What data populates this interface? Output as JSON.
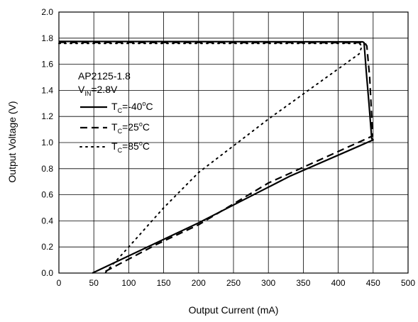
{
  "chart_data": {
    "type": "line",
    "xlabel": "Output Current (mA)",
    "ylabel": "Output Voltage (V)",
    "xlim": [
      0,
      500
    ],
    "ylim": [
      0.0,
      2.0
    ],
    "grid": true,
    "x_ticks": [
      "0",
      "50",
      "100",
      "150",
      "200",
      "250",
      "300",
      "350",
      "400",
      "450",
      "500"
    ],
    "y_ticks": [
      "0.0",
      "0.2",
      "0.4",
      "0.6",
      "0.8",
      "1.0",
      "1.2",
      "1.4",
      "1.6",
      "1.8",
      "2.0"
    ],
    "annotation": {
      "line1": "AP2125-1.8",
      "vin_main": "V",
      "vin_sub": "IN",
      "vin_value": "=2.8V"
    },
    "legend_placement": "left",
    "series": [
      {
        "name": "TC=-40°C",
        "legend_main": "T",
        "legend_sub": "C",
        "legend_value": "=-40",
        "legend_deg": "o",
        "legend_unit": "C",
        "style": "solid",
        "points": [
          [
            0,
            1.775
          ],
          [
            435,
            1.772
          ],
          [
            437,
            1.765
          ],
          [
            440,
            1.55
          ],
          [
            444,
            1.3
          ],
          [
            448,
            1.03
          ],
          [
            450,
            1.02
          ],
          [
            330,
            0.74
          ],
          [
            200,
            0.385
          ],
          [
            48,
            0.0
          ]
        ]
      },
      {
        "name": "TC=25°C",
        "legend_main": "T",
        "legend_sub": "C",
        "legend_value": "=25",
        "legend_deg": "o",
        "legend_unit": "C",
        "style": "dashed",
        "points": [
          [
            0,
            1.768
          ],
          [
            438,
            1.765
          ],
          [
            441,
            1.74
          ],
          [
            445,
            1.5
          ],
          [
            448,
            1.2
          ],
          [
            449,
            1.05
          ],
          [
            300,
            0.69
          ],
          [
            200,
            0.37
          ],
          [
            140,
            0.22
          ],
          [
            62,
            0.0
          ]
        ]
      },
      {
        "name": "TC=85°C",
        "legend_main": "T",
        "legend_sub": "C",
        "legend_value": "=85",
        "legend_deg": "o",
        "legend_unit": "C",
        "style": "dotted",
        "points": [
          [
            0,
            1.76
          ],
          [
            430,
            1.76
          ],
          [
            434,
            1.74
          ],
          [
            430,
            1.68
          ],
          [
            300,
            1.18
          ],
          [
            200,
            0.77
          ],
          [
            150,
            0.5
          ],
          [
            100,
            0.2
          ],
          [
            66,
            0.0
          ]
        ]
      }
    ]
  }
}
